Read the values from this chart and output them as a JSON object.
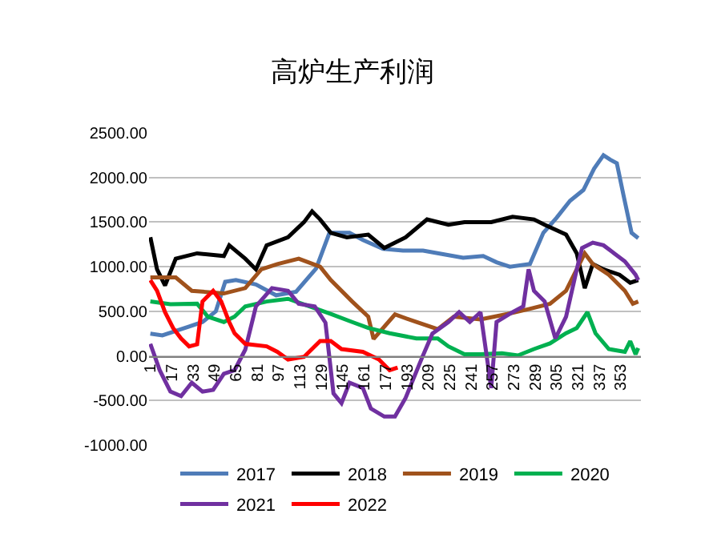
{
  "chart_data": {
    "type": "line",
    "title": "高炉生产利润",
    "xlim": [
      0,
      368
    ],
    "xticks": [
      1,
      17,
      33,
      49,
      65,
      81,
      97,
      113,
      129,
      145,
      161,
      177,
      193,
      209,
      225,
      241,
      257,
      273,
      289,
      305,
      321,
      337,
      353
    ],
    "ylim": [
      -1000,
      2500
    ],
    "yticks": [
      {
        "value": -1000,
        "label": "-1000.00"
      },
      {
        "value": -500,
        "label": "-500.00"
      },
      {
        "value": 0,
        "label": "0.00"
      },
      {
        "value": 500,
        "label": "500.00"
      },
      {
        "value": 1000,
        "label": "1000.00"
      },
      {
        "value": 1500,
        "label": "1500.00"
      },
      {
        "value": 2000,
        "label": "2000.00"
      },
      {
        "value": 2500,
        "label": "2500.00"
      }
    ],
    "grid": "y",
    "legend": "bottom",
    "marker": "none",
    "line_style": "solid",
    "series": [
      {
        "name": "2017",
        "color": "#4f7cb8",
        "x": [
          1,
          10,
          20,
          30,
          40,
          50,
          57,
          65,
          80,
          95,
          110,
          125,
          135,
          150,
          160,
          175,
          190,
          205,
          220,
          235,
          250,
          260,
          270,
          285,
          295,
          305,
          315,
          325,
          333,
          340,
          345,
          350,
          355,
          361,
          366
        ],
        "values": [
          250,
          230,
          280,
          330,
          380,
          500,
          830,
          850,
          800,
          680,
          720,
          980,
          1380,
          1380,
          1300,
          1200,
          1180,
          1180,
          1140,
          1100,
          1120,
          1050,
          1000,
          1030,
          1380,
          1550,
          1740,
          1860,
          2100,
          2250,
          2200,
          2160,
          1800,
          1380,
          1320
        ]
      },
      {
        "name": "2018",
        "color": "#000000",
        "x": [
          1,
          6,
          12,
          20,
          36,
          56,
          60,
          72,
          80,
          88,
          104,
          116,
          122,
          128,
          136,
          148,
          164,
          176,
          192,
          208,
          224,
          236,
          256,
          272,
          288,
          296,
          312,
          320,
          326,
          332,
          340,
          352,
          360,
          366
        ],
        "values": [
          1330,
          970,
          790,
          1090,
          1150,
          1120,
          1240,
          1090,
          970,
          1240,
          1330,
          1500,
          1620,
          1530,
          1380,
          1330,
          1360,
          1210,
          1330,
          1530,
          1470,
          1500,
          1500,
          1560,
          1530,
          1470,
          1360,
          1150,
          760,
          1030,
          970,
          910,
          820,
          850
        ]
      },
      {
        "name": "2019",
        "color": "#a0521c",
        "x": [
          1,
          20,
          32,
          56,
          72,
          84,
          96,
          112,
          128,
          136,
          152,
          164,
          168,
          184,
          200,
          216,
          228,
          248,
          268,
          284,
          300,
          312,
          320,
          326,
          332,
          344,
          356,
          362,
          366
        ],
        "values": [
          880,
          880,
          730,
          700,
          760,
          970,
          1030,
          1090,
          1000,
          850,
          610,
          440,
          190,
          465,
          380,
          300,
          440,
          410,
          470,
          525,
          585,
          730,
          970,
          1150,
          1030,
          910,
          730,
          585,
          610
        ]
      },
      {
        "name": "2020",
        "color": "#00b050",
        "x": [
          1,
          16,
          36,
          44,
          56,
          64,
          72,
          88,
          104,
          120,
          136,
          152,
          164,
          180,
          200,
          216,
          224,
          236,
          248,
          264,
          276,
          288,
          300,
          312,
          320,
          328,
          334,
          344,
          356,
          360,
          364,
          366
        ],
        "values": [
          610,
          580,
          585,
          440,
          380,
          440,
          555,
          610,
          640,
          555,
          470,
          380,
          313,
          254,
          196,
          196,
          107,
          18,
          18,
          30,
          5,
          77,
          140,
          254,
          313,
          490,
          254,
          77,
          46,
          166,
          18,
          89
        ]
      },
      {
        "name": "2021",
        "color": "#7030a0",
        "x": [
          1,
          8,
          16,
          24,
          32,
          40,
          48,
          56,
          64,
          72,
          80,
          92,
          104,
          112,
          124,
          132,
          138,
          144,
          150,
          160,
          166,
          176,
          184,
          192,
          204,
          212,
          224,
          232,
          240,
          248,
          256,
          260,
          272,
          280,
          284,
          288,
          296,
          304,
          312,
          320,
          324,
          332,
          340,
          348,
          356,
          364,
          366
        ],
        "values": [
          135,
          -160,
          -400,
          -450,
          -300,
          -400,
          -380,
          -200,
          -160,
          70,
          555,
          760,
          730,
          585,
          555,
          373,
          -420,
          -530,
          -300,
          -360,
          -590,
          -680,
          -680,
          -470,
          -30,
          250,
          380,
          490,
          380,
          490,
          -360,
          380,
          490,
          555,
          970,
          730,
          610,
          196,
          440,
          970,
          1210,
          1270,
          1240,
          1150,
          1060,
          910,
          850
        ]
      },
      {
        "name": "2022",
        "color": "#ff0000",
        "x": [
          1,
          6,
          12,
          18,
          24,
          30,
          36,
          40,
          48,
          54,
          60,
          64,
          72,
          88,
          96,
          104,
          116,
          128,
          136,
          144,
          160,
          172,
          180,
          186
        ],
        "values": [
          850,
          730,
          490,
          313,
          196,
          107,
          130,
          610,
          730,
          610,
          380,
          254,
          135,
          107,
          46,
          -40,
          -10,
          166,
          166,
          77,
          46,
          -40,
          -160,
          -130
        ]
      }
    ]
  }
}
